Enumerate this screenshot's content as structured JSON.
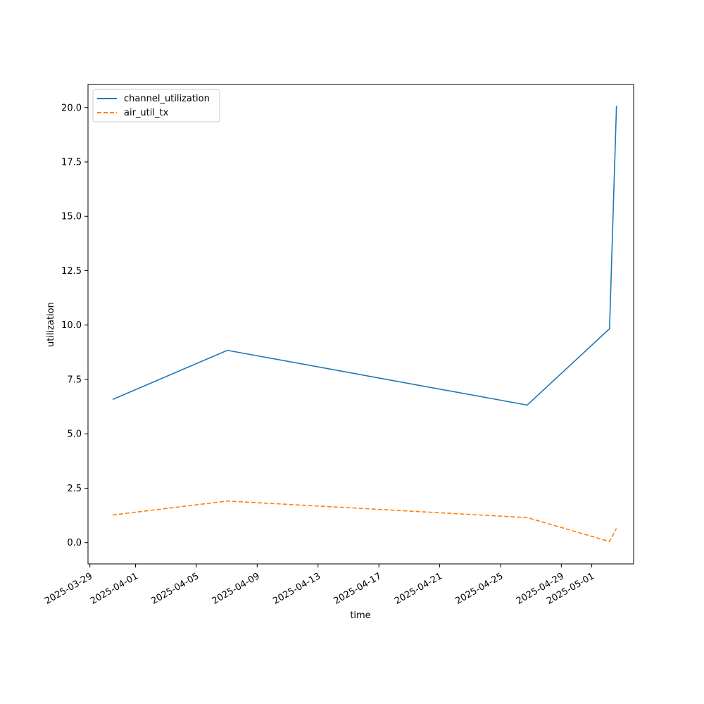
{
  "chart_data": {
    "type": "line",
    "xlabel": "time",
    "ylabel": "utilization",
    "xlim": [
      "2025-03-28T21:00",
      "2025-05-03T18:00"
    ],
    "ylim": [
      -0.98,
      21.06
    ],
    "grid": false,
    "legend_position": "top-left",
    "x_ticks": [
      "2025-03-29",
      "2025-04-01",
      "2025-04-05",
      "2025-04-09",
      "2025-04-13",
      "2025-04-17",
      "2025-04-21",
      "2025-04-25",
      "2025-04-29",
      "2025-05-01"
    ],
    "y_ticks": [
      "0.0",
      "2.5",
      "5.0",
      "7.5",
      "10.0",
      "12.5",
      "15.0",
      "17.5",
      "20.0"
    ],
    "series": [
      {
        "name": "channel_utilization",
        "color": "#1f77b4",
        "dash": "solid",
        "points": [
          {
            "x": "2025-03-30T12:00",
            "y": 6.58
          },
          {
            "x": "2025-04-07T01:00",
            "y": 8.84
          },
          {
            "x": "2025-04-26T18:00",
            "y": 6.32
          },
          {
            "x": "2025-05-02T04:00",
            "y": 9.83
          },
          {
            "x": "2025-05-02T15:00",
            "y": 20.08
          }
        ]
      },
      {
        "name": "air_util_tx",
        "color": "#ff7f0e",
        "dash": "dashed",
        "points": [
          {
            "x": "2025-03-30T12:00",
            "y": 1.27
          },
          {
            "x": "2025-04-07T01:00",
            "y": 1.91
          },
          {
            "x": "2025-04-26T18:00",
            "y": 1.15
          },
          {
            "x": "2025-05-02T04:00",
            "y": 0.05
          },
          {
            "x": "2025-05-02T15:00",
            "y": 0.65
          }
        ]
      }
    ]
  }
}
